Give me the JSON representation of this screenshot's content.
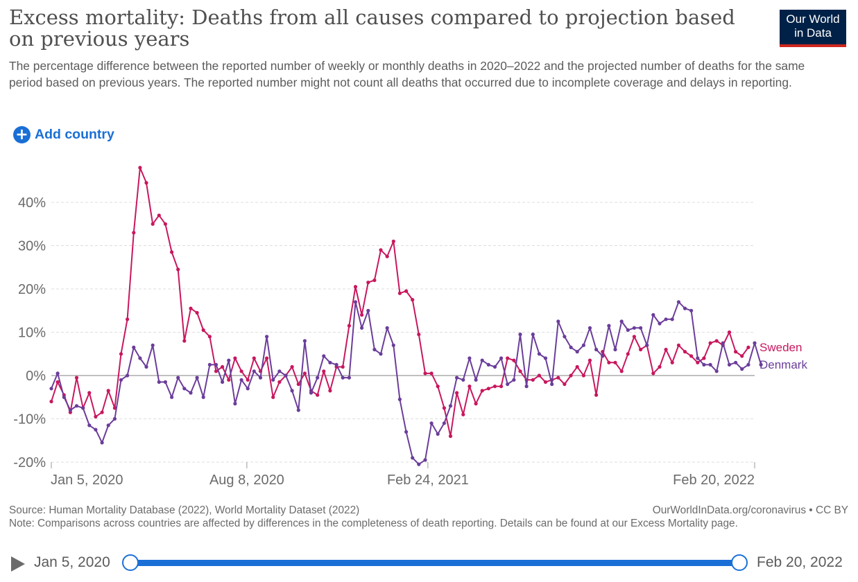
{
  "header": {
    "title": "Excess mortality: Deaths from all causes compared to projection based on previous years",
    "subtitle": "The percentage difference between the reported number of weekly or monthly deaths in 2020–2022 and the projected number of deaths for the same period based on previous years. The reported number might not count all deaths that occurred due to incomplete coverage and delays in reporting.",
    "logo_line1": "Our World",
    "logo_line2": "in Data"
  },
  "controls": {
    "add_country_label": "Add country",
    "add_icon": "plus-circle-icon"
  },
  "footer": {
    "source": "Source: Human Mortality Database (2022), World Mortality Dataset (2022)",
    "url": "OurWorldInData.org/coronavirus • CC BY",
    "note": "Note: Comparisons across countries are affected by differences in the completeness of death reporting. Details can be found at our Excess Mortality page."
  },
  "timeline": {
    "start_label": "Jan 5, 2020",
    "end_label": "Feb 20, 2022",
    "play_icon": "play-icon",
    "range_fraction": [
      0,
      1
    ]
  },
  "colors": {
    "sweden": "#c8175e",
    "denmark": "#6a3d9a",
    "accent": "#1a6fd6"
  },
  "chart_data": {
    "type": "line",
    "title": "",
    "xlabel": "",
    "ylabel": "",
    "ylim": [
      -20,
      48
    ],
    "yticks": [
      -20,
      -10,
      0,
      10,
      20,
      30,
      40
    ],
    "ytick_labels": [
      "-20%",
      "-10%",
      "0%",
      "10%",
      "20%",
      "30%",
      "40%"
    ],
    "xlim": [
      "2020-01-05",
      "2022-02-20"
    ],
    "xticks": [
      "2020-01-05",
      "2020-08-08",
      "2021-02-24",
      "2022-02-20"
    ],
    "xtick_labels": [
      "Jan 5, 2020",
      "Aug 8, 2020",
      "Feb 24, 2021",
      "Feb 20, 2022"
    ],
    "grid": "horizontal dashed",
    "legend": "right, at line ends",
    "series": [
      {
        "name": "Sweden",
        "color": "#c8175e",
        "x": [
          "2020-01-05",
          "2020-01-12",
          "2020-01-19",
          "2020-01-26",
          "2020-02-02",
          "2020-02-09",
          "2020-02-16",
          "2020-02-23",
          "2020-03-01",
          "2020-03-08",
          "2020-03-15",
          "2020-03-22",
          "2020-03-29",
          "2020-04-05",
          "2020-04-12",
          "2020-04-19",
          "2020-04-26",
          "2020-05-03",
          "2020-05-10",
          "2020-05-17",
          "2020-05-24",
          "2020-05-31",
          "2020-06-07",
          "2020-06-14",
          "2020-06-21",
          "2020-06-28",
          "2020-07-05",
          "2020-07-12",
          "2020-07-19",
          "2020-07-26",
          "2020-08-02",
          "2020-08-09",
          "2020-08-16",
          "2020-08-23",
          "2020-08-30",
          "2020-09-06",
          "2020-09-13",
          "2020-09-20",
          "2020-09-27",
          "2020-10-04",
          "2020-10-11",
          "2020-10-18",
          "2020-10-25",
          "2020-11-01",
          "2020-11-08",
          "2020-11-15",
          "2020-11-22",
          "2020-11-29",
          "2020-12-06",
          "2020-12-13",
          "2020-12-20",
          "2020-12-27",
          "2021-01-03",
          "2021-01-10",
          "2021-01-17",
          "2021-01-24",
          "2021-01-31",
          "2021-02-07",
          "2021-02-14",
          "2021-02-21",
          "2021-02-28",
          "2021-03-07",
          "2021-03-14",
          "2021-03-21",
          "2021-03-28",
          "2021-04-04",
          "2021-04-11",
          "2021-04-18",
          "2021-04-25",
          "2021-05-02",
          "2021-05-09",
          "2021-05-16",
          "2021-05-23",
          "2021-05-30",
          "2021-06-06",
          "2021-06-13",
          "2021-06-20",
          "2021-06-27",
          "2021-07-04",
          "2021-07-11",
          "2021-07-18",
          "2021-07-25",
          "2021-08-01",
          "2021-08-08",
          "2021-08-15",
          "2021-08-22",
          "2021-08-29",
          "2021-09-05",
          "2021-09-12",
          "2021-09-19",
          "2021-09-26",
          "2021-10-03",
          "2021-10-10",
          "2021-10-17",
          "2021-10-24",
          "2021-10-31",
          "2021-11-07",
          "2021-11-14",
          "2021-11-21",
          "2021-11-28",
          "2021-12-05",
          "2021-12-12",
          "2021-12-19",
          "2021-12-26",
          "2022-01-02",
          "2022-01-09",
          "2022-01-16",
          "2022-01-23",
          "2022-01-30",
          "2022-02-06",
          "2022-02-13"
        ],
        "values": [
          -6,
          -1.5,
          -4.5,
          -8.5,
          -0.5,
          -7.5,
          -4,
          -9.5,
          -8.5,
          -3.5,
          -7.5,
          5,
          13,
          33,
          48,
          44.5,
          35,
          37,
          35,
          28.5,
          24.5,
          8,
          15.5,
          14.5,
          10.5,
          9,
          1,
          2,
          -1,
          4,
          1,
          -1,
          4,
          1,
          4,
          -5,
          -1.5,
          0,
          2,
          -2,
          0.5,
          -3.5,
          -4.5,
          1,
          -3.5,
          2,
          2,
          11.5,
          20.5,
          14,
          21.5,
          22,
          29,
          27.5,
          31,
          19,
          19.5,
          17.5,
          9.5,
          0.5,
          0.5,
          -2.5,
          -7.5,
          -14,
          -4,
          -9,
          -2.5,
          -6.5,
          -3.5,
          -3,
          -2.5,
          -2.5,
          4,
          3.5,
          1,
          -1,
          -1,
          0,
          -1.5,
          -1,
          -0.5,
          -2,
          0,
          2,
          0,
          3.5,
          -4.5,
          5.5,
          3,
          3,
          1,
          5,
          9,
          6,
          7,
          0.5,
          2,
          6,
          3,
          7,
          5.5,
          4.5,
          3,
          4,
          7.5,
          8,
          7,
          10,
          5.5,
          4.5,
          6.5
        ]
      },
      {
        "name": "Denmark",
        "color": "#6a3d9a",
        "x": [
          "2020-01-05",
          "2020-01-12",
          "2020-01-19",
          "2020-01-26",
          "2020-02-02",
          "2020-02-09",
          "2020-02-16",
          "2020-02-23",
          "2020-03-01",
          "2020-03-08",
          "2020-03-15",
          "2020-03-22",
          "2020-03-29",
          "2020-04-05",
          "2020-04-12",
          "2020-04-19",
          "2020-04-26",
          "2020-05-03",
          "2020-05-10",
          "2020-05-17",
          "2020-05-24",
          "2020-05-31",
          "2020-06-07",
          "2020-06-14",
          "2020-06-21",
          "2020-06-28",
          "2020-07-05",
          "2020-07-12",
          "2020-07-19",
          "2020-07-26",
          "2020-08-02",
          "2020-08-09",
          "2020-08-16",
          "2020-08-23",
          "2020-08-30",
          "2020-09-06",
          "2020-09-13",
          "2020-09-20",
          "2020-09-27",
          "2020-10-04",
          "2020-10-11",
          "2020-10-18",
          "2020-10-25",
          "2020-11-01",
          "2020-11-08",
          "2020-11-15",
          "2020-11-22",
          "2020-11-29",
          "2020-12-06",
          "2020-12-13",
          "2020-12-20",
          "2020-12-27",
          "2021-01-03",
          "2021-01-10",
          "2021-01-17",
          "2021-01-24",
          "2021-01-31",
          "2021-02-07",
          "2021-02-14",
          "2021-02-21",
          "2021-02-28",
          "2021-03-07",
          "2021-03-14",
          "2021-03-21",
          "2021-03-28",
          "2021-04-04",
          "2021-04-11",
          "2021-04-18",
          "2021-04-25",
          "2021-05-02",
          "2021-05-09",
          "2021-05-16",
          "2021-05-23",
          "2021-05-30",
          "2021-06-06",
          "2021-06-13",
          "2021-06-20",
          "2021-06-27",
          "2021-07-04",
          "2021-07-11",
          "2021-07-18",
          "2021-07-25",
          "2021-08-01",
          "2021-08-08",
          "2021-08-15",
          "2021-08-22",
          "2021-08-29",
          "2021-09-05",
          "2021-09-12",
          "2021-09-19",
          "2021-09-26",
          "2021-10-03",
          "2021-10-10",
          "2021-10-17",
          "2021-10-24",
          "2021-10-31",
          "2021-11-07",
          "2021-11-14",
          "2021-11-21",
          "2021-11-28",
          "2021-12-05",
          "2021-12-12",
          "2021-12-19",
          "2021-12-26",
          "2022-01-02",
          "2022-01-09",
          "2022-01-16",
          "2022-01-23",
          "2022-01-30",
          "2022-02-06",
          "2022-02-13",
          "2022-02-20",
          "2022-02-27"
        ],
        "values": [
          -3,
          0.5,
          -5,
          -8,
          -7,
          -7.5,
          -11.5,
          -12.5,
          -15.5,
          -11.5,
          -10,
          -1,
          0,
          6.5,
          4,
          2,
          7,
          -1.5,
          -1.5,
          -5,
          -0.5,
          -3,
          -4,
          -0.5,
          -5,
          2.5,
          2.5,
          -1.5,
          3.5,
          -6.5,
          -1,
          -3,
          1,
          -0.5,
          9,
          -1,
          1,
          0,
          -3.5,
          -8,
          8,
          -4,
          -0.5,
          4.5,
          3,
          2.5,
          -0.5,
          -0.5,
          17,
          11,
          15,
          6,
          5,
          11,
          7,
          -5.5,
          -13,
          -19,
          -20.5,
          -19.5,
          -11,
          -13.5,
          -11,
          -7,
          -0.5,
          -1,
          4,
          -1,
          3.5,
          2.5,
          2,
          4,
          -2,
          -1,
          9.5,
          -2.5,
          9.5,
          5,
          4,
          -2,
          12.5,
          9,
          6.5,
          5.5,
          7,
          11,
          6,
          4.5,
          11.5,
          6,
          12.5,
          10.5,
          11,
          11,
          7,
          14,
          12,
          13,
          13,
          17,
          15.5,
          15,
          4,
          2.5,
          2.5,
          1,
          7.5,
          2.5,
          3,
          1.5,
          2.5,
          7.5,
          2.5
        ]
      }
    ]
  }
}
